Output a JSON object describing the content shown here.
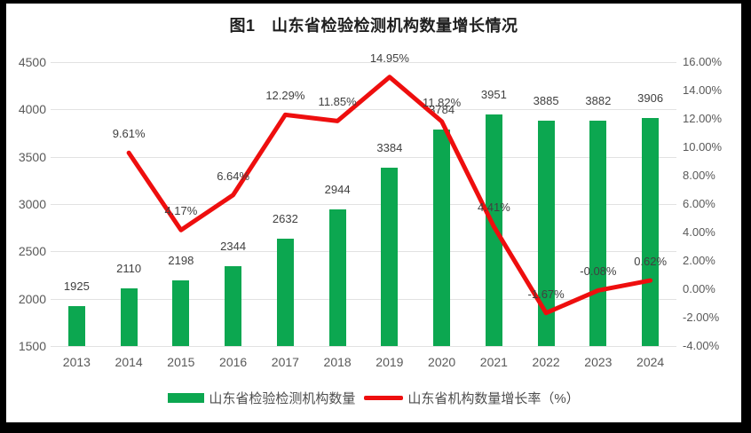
{
  "frame": {
    "border_color": "#000000",
    "panel_color": "#ffffff"
  },
  "chart_data": {
    "type": "combo-bar-line",
    "title": "图1　山东省检验检测机构数量增长情况",
    "categories": [
      "2013",
      "2014",
      "2015",
      "2016",
      "2017",
      "2018",
      "2019",
      "2020",
      "2021",
      "2022",
      "2023",
      "2024"
    ],
    "series": [
      {
        "name": "山东省检验检测机构数量",
        "type": "bar",
        "axis": "left",
        "color": "#0ca750",
        "values": [
          1925,
          2110,
          2198,
          2344,
          2632,
          2944,
          3384,
          3784,
          3951,
          3885,
          3882,
          3906
        ],
        "labels": [
          "1925",
          "2110",
          "2198",
          "2344",
          "2632",
          "2944",
          "3384",
          "3784",
          "3951",
          "3885",
          "3882",
          "3906"
        ]
      },
      {
        "name": "山东省机构数量增长率（%）",
        "type": "line",
        "axis": "right",
        "color": "#ee0e0e",
        "values": [
          null,
          9.61,
          4.17,
          6.64,
          12.29,
          11.85,
          14.95,
          11.82,
          4.41,
          -1.67,
          -0.08,
          0.62
        ],
        "labels": [
          null,
          "9.61%",
          "4.17%",
          "6.64%",
          "12.29%",
          "11.85%",
          "14.95%",
          "11.82%",
          "4.41%",
          "-1.67%",
          "-0.08%",
          "0.62%"
        ]
      }
    ],
    "left_axis": {
      "min": 1500,
      "max": 4500,
      "step": 500,
      "ticks": [
        "4500",
        "4000",
        "3500",
        "3000",
        "2500",
        "2000",
        "1500"
      ]
    },
    "right_axis": {
      "min": -4,
      "max": 16,
      "step": 2,
      "ticks": [
        "16.00%",
        "14.00%",
        "12.00%",
        "10.00%",
        "8.00%",
        "6.00%",
        "4.00%",
        "2.00%",
        "0.00%",
        "-2.00%",
        "-4.00%"
      ]
    },
    "grid": true,
    "legend_position": "bottom",
    "grid_color": "#e2e2e2"
  }
}
